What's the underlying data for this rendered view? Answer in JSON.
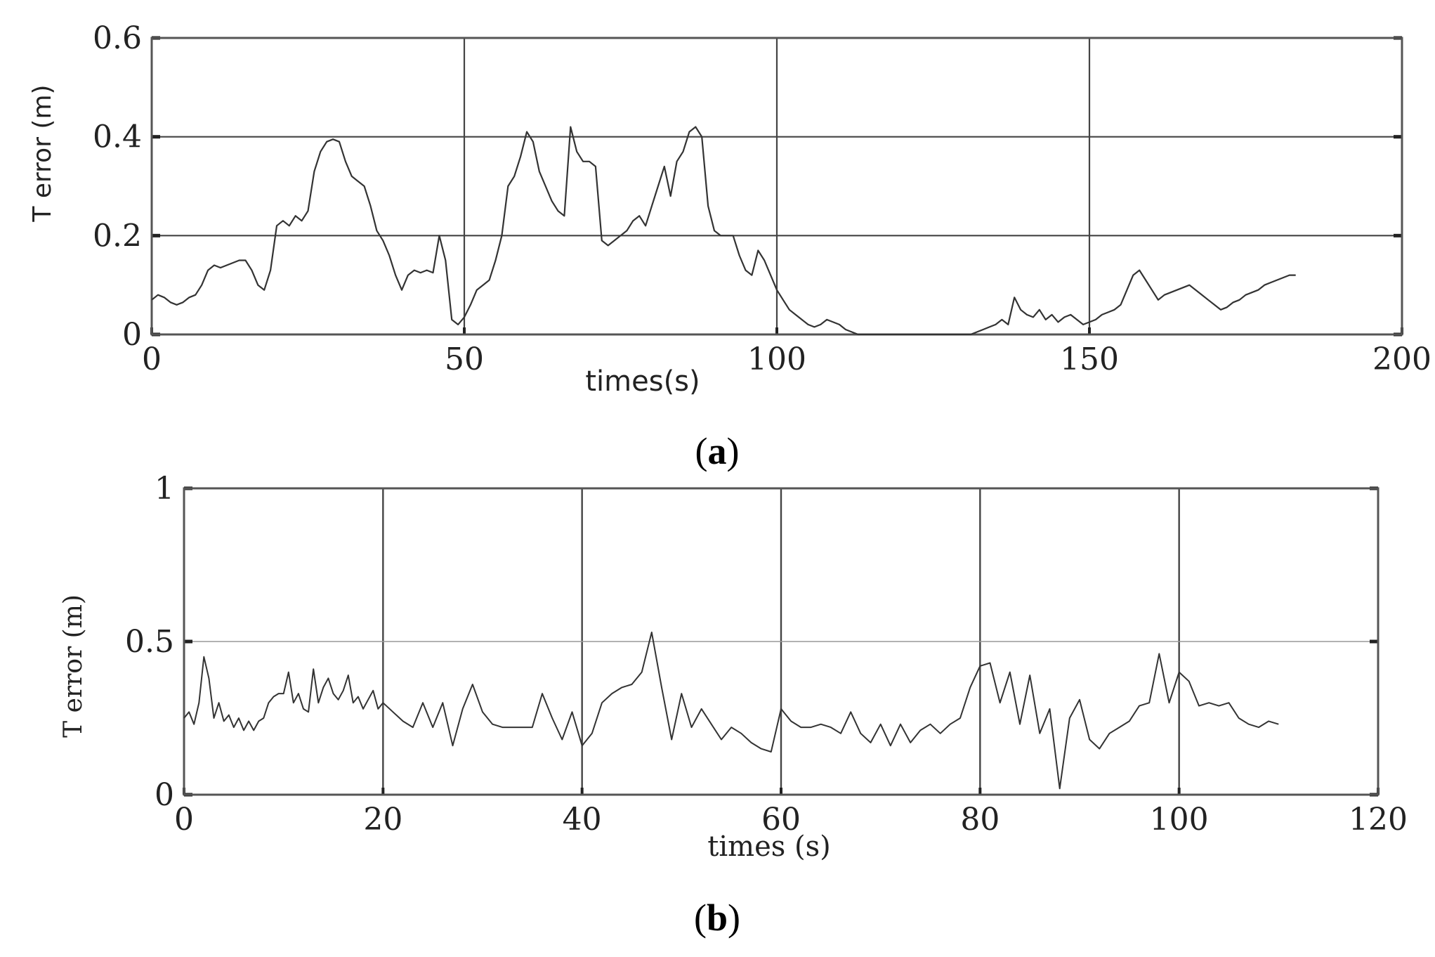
{
  "chart_data": [
    {
      "type": "line",
      "panel_label": "a",
      "xlabel": "times(s)",
      "ylabel": "T error (m)",
      "xlim": [
        0,
        200
      ],
      "ylim": [
        0,
        0.6
      ],
      "x_ticks": [
        "0",
        "50",
        "100",
        "150",
        "200"
      ],
      "y_ticks": [
        "0",
        "0.2",
        "0.4",
        "0.6"
      ],
      "grid": true,
      "series": [
        {
          "x": [
            0,
            1,
            2,
            3,
            4,
            5,
            6,
            7,
            8,
            9,
            10,
            11,
            12,
            13,
            14,
            15,
            16,
            17,
            18,
            19,
            20,
            21,
            22,
            23,
            24,
            25,
            26,
            27,
            28,
            29,
            30,
            31,
            32,
            33,
            34,
            35,
            36,
            37,
            38,
            39,
            40,
            41,
            42,
            43,
            44,
            45,
            46,
            47,
            48,
            49,
            50,
            51,
            52,
            53,
            54,
            55,
            56,
            57,
            58,
            59,
            60,
            61,
            62,
            63,
            64,
            65,
            66,
            67,
            68,
            69,
            70,
            71,
            72,
            73,
            74,
            75,
            76,
            77,
            78,
            79,
            80,
            81,
            82,
            83,
            84,
            85,
            86,
            87,
            88,
            89,
            90,
            91,
            92,
            93,
            94,
            95,
            96,
            97,
            98,
            99,
            100,
            101,
            102,
            103,
            104,
            105,
            106,
            107,
            108,
            109,
            110,
            111,
            112,
            113,
            114,
            115,
            116,
            117,
            118,
            119,
            120,
            121,
            122,
            123,
            124,
            125,
            126,
            127,
            128,
            129,
            130,
            131,
            132,
            133,
            134,
            135,
            136,
            137,
            138,
            139,
            140,
            141,
            142,
            143,
            144,
            145,
            146,
            147,
            148,
            149,
            150,
            151,
            152,
            153,
            154,
            155,
            156,
            157,
            158,
            159,
            160,
            161,
            162,
            163,
            164,
            165,
            166,
            167,
            168,
            169,
            170,
            171,
            172,
            173,
            174,
            175,
            176,
            177,
            178,
            179,
            180,
            181,
            182,
            183
          ],
          "y": [
            0.07,
            0.08,
            0.075,
            0.065,
            0.06,
            0.065,
            0.075,
            0.08,
            0.1,
            0.13,
            0.14,
            0.135,
            0.14,
            0.145,
            0.15,
            0.15,
            0.13,
            0.1,
            0.09,
            0.13,
            0.22,
            0.23,
            0.22,
            0.24,
            0.23,
            0.25,
            0.33,
            0.37,
            0.39,
            0.395,
            0.39,
            0.35,
            0.32,
            0.31,
            0.3,
            0.26,
            0.21,
            0.19,
            0.16,
            0.12,
            0.09,
            0.12,
            0.13,
            0.125,
            0.13,
            0.125,
            0.2,
            0.15,
            0.03,
            0.02,
            0.035,
            0.06,
            0.09,
            0.1,
            0.11,
            0.15,
            0.2,
            0.3,
            0.32,
            0.36,
            0.41,
            0.39,
            0.33,
            0.3,
            0.27,
            0.25,
            0.24,
            0.42,
            0.37,
            0.35,
            0.35,
            0.34,
            0.19,
            0.18,
            0.19,
            0.2,
            0.21,
            0.23,
            0.24,
            0.22,
            0.26,
            0.3,
            0.34,
            0.28,
            0.35,
            0.37,
            0.41,
            0.42,
            0.4,
            0.26,
            0.21,
            0.2,
            0.2,
            0.2,
            0.16,
            0.13,
            0.12,
            0.17,
            0.15,
            0.12,
            0.09,
            0.07,
            0.05,
            0.04,
            0.03,
            0.02,
            0.015,
            0.02,
            0.03,
            0.025,
            0.02,
            0.01,
            0.005,
            0.0,
            0.0,
            0.0,
            0.0,
            0.0,
            0.0,
            0.0,
            0.0,
            0.0,
            0.0,
            0.0,
            0.0,
            0.0,
            0.0,
            0.0,
            0.0,
            0.0,
            0.0,
            0.0,
            0.005,
            0.01,
            0.015,
            0.02,
            0.03,
            0.02,
            0.075,
            0.05,
            0.04,
            0.035,
            0.05,
            0.03,
            0.04,
            0.025,
            0.035,
            0.04,
            0.03,
            0.02,
            0.025,
            0.03,
            0.04,
            0.045,
            0.05,
            0.06,
            0.09,
            0.12,
            0.13,
            0.11,
            0.09,
            0.07,
            0.08,
            0.085,
            0.09,
            0.095,
            0.1,
            0.09,
            0.08,
            0.07,
            0.06,
            0.05,
            0.055,
            0.065,
            0.07,
            0.08,
            0.085,
            0.09,
            0.1,
            0.105,
            0.11,
            0.115,
            0.12,
            0.12
          ]
        }
      ]
    },
    {
      "type": "line",
      "panel_label": "b",
      "xlabel": "times (s)",
      "ylabel": "T error (m)",
      "xlim": [
        0,
        120
      ],
      "ylim": [
        0,
        1
      ],
      "x_ticks": [
        "0",
        "20",
        "40",
        "60",
        "80",
        "100",
        "120"
      ],
      "y_ticks": [
        "0",
        "0.5",
        "1"
      ],
      "grid": true,
      "series": [
        {
          "x": [
            0,
            0.5,
            1,
            1.5,
            2,
            2.5,
            3,
            3.5,
            4,
            4.5,
            5,
            5.5,
            6,
            6.5,
            7,
            7.5,
            8,
            8.5,
            9,
            9.5,
            10,
            10.5,
            11,
            11.5,
            12,
            12.5,
            13,
            13.5,
            14,
            14.5,
            15,
            15.5,
            16,
            16.5,
            17,
            17.5,
            18,
            18.5,
            19,
            19.5,
            20,
            21,
            22,
            23,
            24,
            25,
            26,
            27,
            28,
            29,
            30,
            31,
            32,
            33,
            34,
            35,
            36,
            37,
            38,
            39,
            40,
            41,
            42,
            43,
            44,
            45,
            46,
            47,
            48,
            49,
            50,
            51,
            52,
            53,
            54,
            55,
            56,
            57,
            58,
            59,
            60,
            61,
            62,
            63,
            64,
            65,
            66,
            67,
            68,
            69,
            70,
            71,
            72,
            73,
            74,
            75,
            76,
            77,
            78,
            79,
            80,
            81,
            82,
            83,
            84,
            85,
            86,
            87,
            88,
            89,
            90,
            91,
            92,
            93,
            94,
            95,
            96,
            97,
            98,
            99,
            100,
            101,
            102,
            103,
            104,
            105,
            106,
            107,
            108,
            109,
            110
          ],
          "y": [
            0.25,
            0.27,
            0.23,
            0.3,
            0.45,
            0.38,
            0.25,
            0.3,
            0.24,
            0.26,
            0.22,
            0.25,
            0.21,
            0.24,
            0.21,
            0.24,
            0.25,
            0.3,
            0.32,
            0.33,
            0.33,
            0.4,
            0.3,
            0.33,
            0.28,
            0.27,
            0.41,
            0.3,
            0.35,
            0.38,
            0.33,
            0.31,
            0.34,
            0.39,
            0.3,
            0.32,
            0.28,
            0.31,
            0.34,
            0.28,
            0.3,
            0.27,
            0.24,
            0.22,
            0.3,
            0.22,
            0.3,
            0.16,
            0.28,
            0.36,
            0.27,
            0.23,
            0.22,
            0.22,
            0.22,
            0.22,
            0.33,
            0.25,
            0.18,
            0.27,
            0.16,
            0.2,
            0.3,
            0.33,
            0.35,
            0.36,
            0.4,
            0.53,
            0.35,
            0.18,
            0.33,
            0.22,
            0.28,
            0.23,
            0.18,
            0.22,
            0.2,
            0.17,
            0.15,
            0.14,
            0.28,
            0.24,
            0.22,
            0.22,
            0.23,
            0.22,
            0.2,
            0.27,
            0.2,
            0.17,
            0.23,
            0.16,
            0.23,
            0.17,
            0.21,
            0.23,
            0.2,
            0.23,
            0.25,
            0.35,
            0.42,
            0.43,
            0.3,
            0.4,
            0.23,
            0.39,
            0.2,
            0.28,
            0.02,
            0.25,
            0.31,
            0.18,
            0.15,
            0.2,
            0.22,
            0.24,
            0.29,
            0.3,
            0.46,
            0.3,
            0.4,
            0.37,
            0.29,
            0.3,
            0.29,
            0.3,
            0.25,
            0.23,
            0.22,
            0.24,
            0.23
          ]
        }
      ]
    }
  ]
}
